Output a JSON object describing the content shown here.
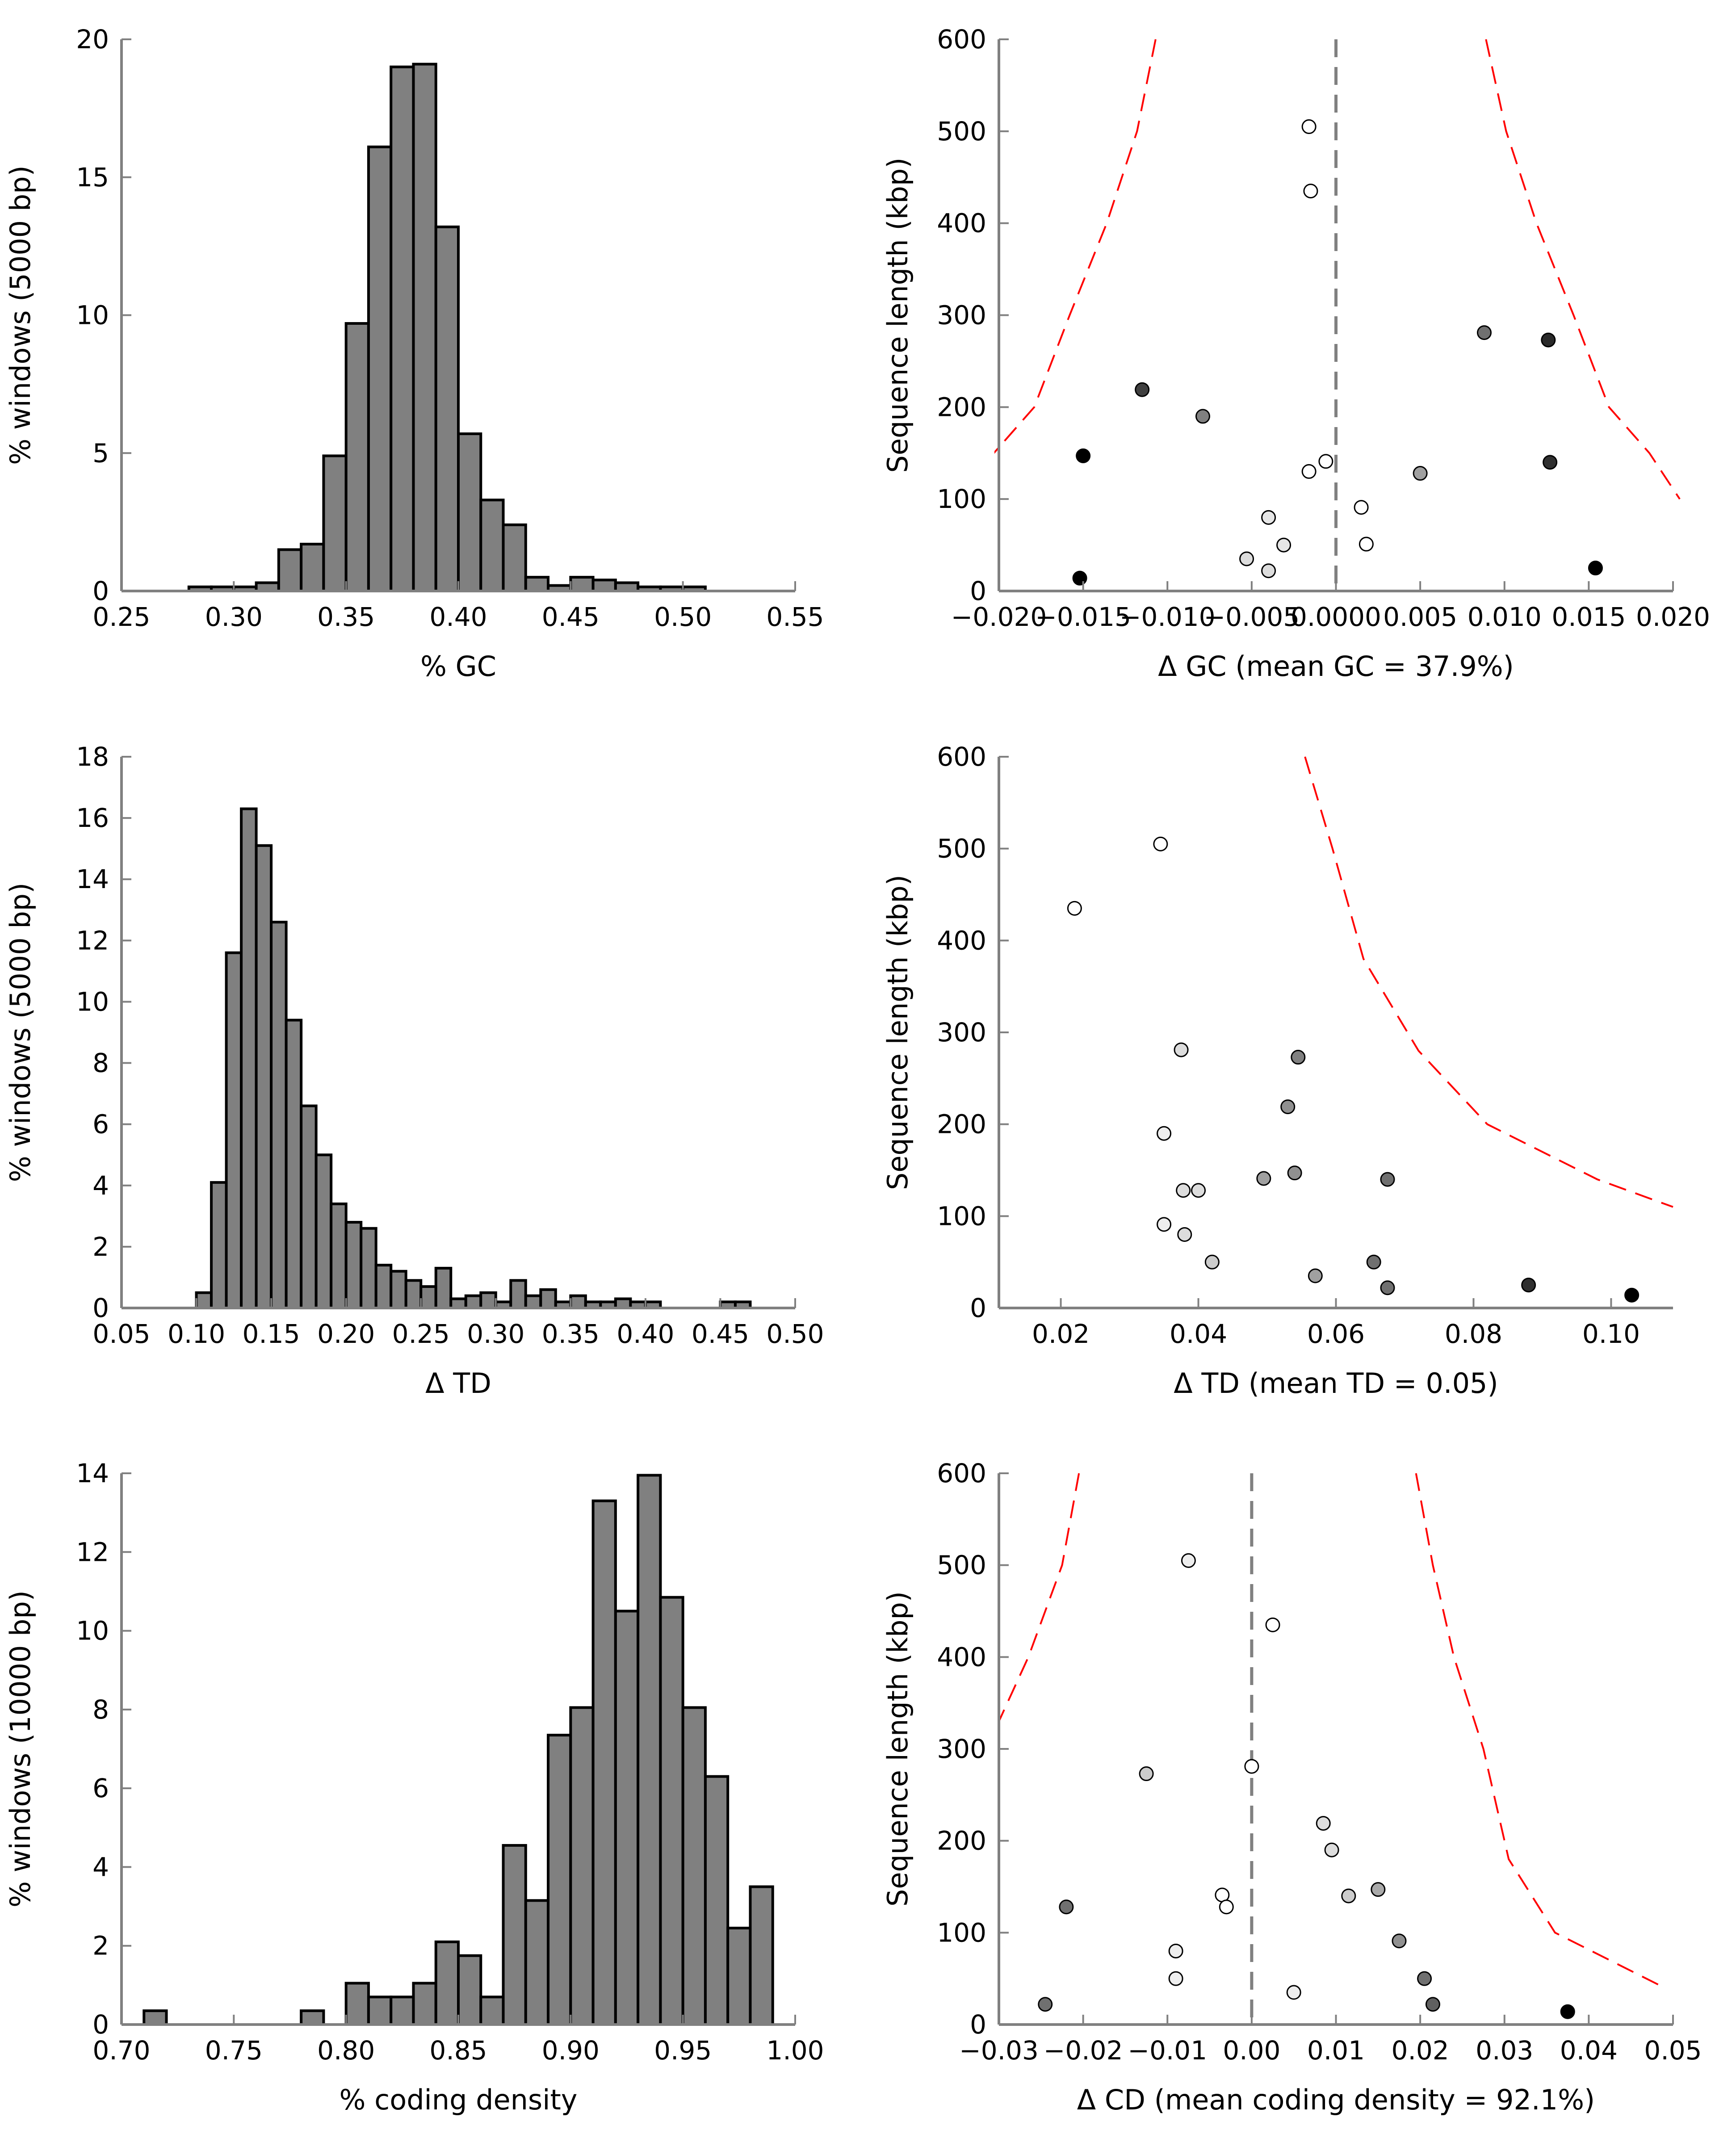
{
  "chart_data": [
    {
      "type": "bar",
      "subtype": "histogram",
      "xlabel": "% GC",
      "ylabel": "% windows (5000 bp)",
      "xlim": [
        0.25,
        0.55
      ],
      "ylim": [
        0,
        20
      ],
      "xticks": [
        "0.25",
        "0.30",
        "0.35",
        "0.40",
        "0.45",
        "0.50",
        "0.55"
      ],
      "yticks": [
        "0",
        "5",
        "10",
        "15",
        "20"
      ],
      "bar_color": "#808080",
      "bins": [
        {
          "x0": 0.28,
          "x1": 0.29,
          "value": 0.15
        },
        {
          "x0": 0.29,
          "x1": 0.3,
          "value": 0.15
        },
        {
          "x0": 0.3,
          "x1": 0.31,
          "value": 0.15
        },
        {
          "x0": 0.31,
          "x1": 0.32,
          "value": 0.3
        },
        {
          "x0": 0.32,
          "x1": 0.33,
          "value": 1.5
        },
        {
          "x0": 0.33,
          "x1": 0.34,
          "value": 1.7
        },
        {
          "x0": 0.34,
          "x1": 0.35,
          "value": 4.9
        },
        {
          "x0": 0.35,
          "x1": 0.36,
          "value": 9.7
        },
        {
          "x0": 0.36,
          "x1": 0.37,
          "value": 16.1
        },
        {
          "x0": 0.37,
          "x1": 0.38,
          "value": 19.0
        },
        {
          "x0": 0.38,
          "x1": 0.39,
          "value": 19.1
        },
        {
          "x0": 0.39,
          "x1": 0.4,
          "value": 13.2
        },
        {
          "x0": 0.4,
          "x1": 0.41,
          "value": 5.7
        },
        {
          "x0": 0.41,
          "x1": 0.42,
          "value": 3.3
        },
        {
          "x0": 0.42,
          "x1": 0.43,
          "value": 2.4
        },
        {
          "x0": 0.43,
          "x1": 0.44,
          "value": 0.5
        },
        {
          "x0": 0.44,
          "x1": 0.45,
          "value": 0.2
        },
        {
          "x0": 0.45,
          "x1": 0.46,
          "value": 0.5
        },
        {
          "x0": 0.46,
          "x1": 0.47,
          "value": 0.4
        },
        {
          "x0": 0.47,
          "x1": 0.48,
          "value": 0.3
        },
        {
          "x0": 0.48,
          "x1": 0.49,
          "value": 0.15
        },
        {
          "x0": 0.49,
          "x1": 0.5,
          "value": 0.15
        },
        {
          "x0": 0.5,
          "x1": 0.51,
          "value": 0.15
        }
      ]
    },
    {
      "type": "scatter",
      "xlabel": "Δ GC (mean GC = 37.9%)",
      "ylabel": "Sequence length (kbp)",
      "xlim": [
        -0.02,
        0.02
      ],
      "ylim": [
        0,
        600
      ],
      "xticks": [
        "−0.020",
        "−0.015",
        "−0.010",
        "−0.005",
        "0.0000",
        "0.005",
        "0.010",
        "0.015",
        "0.020"
      ],
      "xtick_values": [
        -0.02,
        -0.015,
        -0.01,
        -0.005,
        0,
        0.005,
        0.01,
        0.015,
        0.02
      ],
      "yticks": [
        "0",
        "100",
        "200",
        "300",
        "400",
        "500",
        "600"
      ],
      "reference_line_x": 0,
      "reference_line_color": "#808080",
      "threshold_color": "#ff0000",
      "threshold_curves": [
        {
          "x": [
            -0.0107,
            -0.0118,
            -0.0136,
            -0.0158,
            -0.0179,
            -0.0203,
            -0.0221
          ],
          "y": [
            600,
            500,
            400,
            300,
            200,
            150,
            120
          ]
        },
        {
          "x": [
            0.0089,
            0.0101,
            0.0119,
            0.0141,
            0.0162,
            0.0186,
            0.0204
          ],
          "y": [
            600,
            500,
            400,
            300,
            200,
            150,
            100
          ]
        }
      ],
      "points": [
        {
          "x": -0.0016,
          "y": 505,
          "fill": "#ffffff"
        },
        {
          "x": -0.0015,
          "y": 435,
          "fill": "#ffffff"
        },
        {
          "x": 0.0088,
          "y": 281,
          "fill": "#707070"
        },
        {
          "x": 0.0126,
          "y": 273,
          "fill": "#2a2a2a"
        },
        {
          "x": -0.0115,
          "y": 219,
          "fill": "#404040"
        },
        {
          "x": -0.0079,
          "y": 190,
          "fill": "#808080"
        },
        {
          "x": -0.015,
          "y": 147,
          "fill": "#000000"
        },
        {
          "x": -0.0006,
          "y": 141,
          "fill": "#ffffff"
        },
        {
          "x": 0.0127,
          "y": 140,
          "fill": "#303030"
        },
        {
          "x": -0.0016,
          "y": 130,
          "fill": "#ffffff"
        },
        {
          "x": 0.005,
          "y": 128,
          "fill": "#a0a0a0"
        },
        {
          "x": 0.0015,
          "y": 91,
          "fill": "#ffffff"
        },
        {
          "x": -0.004,
          "y": 80,
          "fill": "#e6e6e6"
        },
        {
          "x": 0.0018,
          "y": 51,
          "fill": "#ffffff"
        },
        {
          "x": -0.0031,
          "y": 50,
          "fill": "#e6e6e6"
        },
        {
          "x": -0.0053,
          "y": 35,
          "fill": "#dddddd"
        },
        {
          "x": 0.0154,
          "y": 25,
          "fill": "#000000"
        },
        {
          "x": -0.004,
          "y": 22,
          "fill": "#dddddd"
        },
        {
          "x": -0.0152,
          "y": 14,
          "fill": "#000000"
        }
      ]
    },
    {
      "type": "bar",
      "subtype": "histogram",
      "xlabel": "Δ TD",
      "ylabel": "% windows (5000 bp)",
      "xlim": [
        0.05,
        0.5
      ],
      "ylim": [
        0,
        18
      ],
      "xticks": [
        "0.05",
        "0.10",
        "0.15",
        "0.20",
        "0.25",
        "0.30",
        "0.35",
        "0.40",
        "0.45",
        "0.50"
      ],
      "yticks": [
        "0",
        "2",
        "4",
        "6",
        "8",
        "10",
        "12",
        "14",
        "16",
        "18"
      ],
      "bar_color": "#808080",
      "bins": [
        {
          "x0": 0.1,
          "x1": 0.11,
          "value": 0.5
        },
        {
          "x0": 0.11,
          "x1": 0.12,
          "value": 4.1
        },
        {
          "x0": 0.12,
          "x1": 0.13,
          "value": 11.6
        },
        {
          "x0": 0.13,
          "x1": 0.14,
          "value": 16.3
        },
        {
          "x0": 0.14,
          "x1": 0.15,
          "value": 15.1
        },
        {
          "x0": 0.15,
          "x1": 0.16,
          "value": 12.6
        },
        {
          "x0": 0.16,
          "x1": 0.17,
          "value": 9.4
        },
        {
          "x0": 0.17,
          "x1": 0.18,
          "value": 6.6
        },
        {
          "x0": 0.18,
          "x1": 0.19,
          "value": 5.0
        },
        {
          "x0": 0.19,
          "x1": 0.2,
          "value": 3.4
        },
        {
          "x0": 0.2,
          "x1": 0.21,
          "value": 2.8
        },
        {
          "x0": 0.21,
          "x1": 0.22,
          "value": 2.6
        },
        {
          "x0": 0.22,
          "x1": 0.23,
          "value": 1.4
        },
        {
          "x0": 0.23,
          "x1": 0.24,
          "value": 1.2
        },
        {
          "x0": 0.24,
          "x1": 0.25,
          "value": 0.9
        },
        {
          "x0": 0.25,
          "x1": 0.26,
          "value": 0.7
        },
        {
          "x0": 0.26,
          "x1": 0.27,
          "value": 1.3
        },
        {
          "x0": 0.27,
          "x1": 0.28,
          "value": 0.3
        },
        {
          "x0": 0.28,
          "x1": 0.29,
          "value": 0.4
        },
        {
          "x0": 0.29,
          "x1": 0.3,
          "value": 0.5
        },
        {
          "x0": 0.3,
          "x1": 0.31,
          "value": 0.2
        },
        {
          "x0": 0.31,
          "x1": 0.32,
          "value": 0.9
        },
        {
          "x0": 0.32,
          "x1": 0.33,
          "value": 0.4
        },
        {
          "x0": 0.33,
          "x1": 0.34,
          "value": 0.6
        },
        {
          "x0": 0.34,
          "x1": 0.35,
          "value": 0.2
        },
        {
          "x0": 0.35,
          "x1": 0.36,
          "value": 0.4
        },
        {
          "x0": 0.36,
          "x1": 0.37,
          "value": 0.2
        },
        {
          "x0": 0.37,
          "x1": 0.38,
          "value": 0.2
        },
        {
          "x0": 0.38,
          "x1": 0.39,
          "value": 0.3
        },
        {
          "x0": 0.39,
          "x1": 0.4,
          "value": 0.2
        },
        {
          "x0": 0.4,
          "x1": 0.41,
          "value": 0.2
        },
        {
          "x0": 0.45,
          "x1": 0.46,
          "value": 0.2
        },
        {
          "x0": 0.46,
          "x1": 0.47,
          "value": 0.2
        }
      ]
    },
    {
      "type": "scatter",
      "xlabel": "Δ TD (mean TD = 0.05)",
      "ylabel": "Sequence length (kbp)",
      "xlim": [
        0.011,
        0.109
      ],
      "ylim": [
        0,
        600
      ],
      "xticks": [
        "0.02",
        "0.04",
        "0.06",
        "0.08",
        "0.10"
      ],
      "xtick_values": [
        0.02,
        0.04,
        0.06,
        0.08,
        0.1
      ],
      "yticks": [
        "0",
        "100",
        "200",
        "300",
        "400",
        "500",
        "600"
      ],
      "threshold_color": "#ff0000",
      "threshold_curves": [
        {
          "x": [
            0.0555,
            0.0595,
            0.064,
            0.072,
            0.082,
            0.098,
            0.109
          ],
          "y": [
            600,
            500,
            380,
            280,
            200,
            140,
            110
          ]
        }
      ],
      "points": [
        {
          "x": 0.0345,
          "y": 505,
          "fill": "#ffffff"
        },
        {
          "x": 0.022,
          "y": 435,
          "fill": "#ffffff"
        },
        {
          "x": 0.0375,
          "y": 281,
          "fill": "#dddddd"
        },
        {
          "x": 0.0545,
          "y": 273,
          "fill": "#808080"
        },
        {
          "x": 0.053,
          "y": 219,
          "fill": "#909090"
        },
        {
          "x": 0.035,
          "y": 190,
          "fill": "#eeeeee"
        },
        {
          "x": 0.054,
          "y": 147,
          "fill": "#909090"
        },
        {
          "x": 0.0495,
          "y": 141,
          "fill": "#a0a0a0"
        },
        {
          "x": 0.0675,
          "y": 140,
          "fill": "#707070"
        },
        {
          "x": 0.0378,
          "y": 128,
          "fill": "#dddddd"
        },
        {
          "x": 0.04,
          "y": 128,
          "fill": "#dddddd"
        },
        {
          "x": 0.035,
          "y": 91,
          "fill": "#eeeeee"
        },
        {
          "x": 0.038,
          "y": 80,
          "fill": "#dddddd"
        },
        {
          "x": 0.042,
          "y": 50,
          "fill": "#cccccc"
        },
        {
          "x": 0.0655,
          "y": 50,
          "fill": "#707070"
        },
        {
          "x": 0.057,
          "y": 35,
          "fill": "#a0a0a0"
        },
        {
          "x": 0.088,
          "y": 25,
          "fill": "#303030"
        },
        {
          "x": 0.0675,
          "y": 22,
          "fill": "#707070"
        },
        {
          "x": 0.103,
          "y": 14,
          "fill": "#000000"
        }
      ]
    },
    {
      "type": "bar",
      "subtype": "histogram",
      "xlabel": "% coding density",
      "ylabel": "% windows (10000 bp)",
      "xlim": [
        0.7,
        1.0
      ],
      "ylim": [
        0,
        14
      ],
      "xticks": [
        "0.70",
        "0.75",
        "0.80",
        "0.85",
        "0.90",
        "0.95",
        "1.00"
      ],
      "yticks": [
        "0",
        "2",
        "4",
        "6",
        "8",
        "10",
        "12",
        "14"
      ],
      "bar_color": "#808080",
      "bins": [
        {
          "x0": 0.71,
          "x1": 0.72,
          "value": 0.35
        },
        {
          "x0": 0.78,
          "x1": 0.79,
          "value": 0.35
        },
        {
          "x0": 0.8,
          "x1": 0.81,
          "value": 1.05
        },
        {
          "x0": 0.81,
          "x1": 0.82,
          "value": 0.7
        },
        {
          "x0": 0.82,
          "x1": 0.83,
          "value": 0.7
        },
        {
          "x0": 0.83,
          "x1": 0.84,
          "value": 1.05
        },
        {
          "x0": 0.84,
          "x1": 0.85,
          "value": 2.1
        },
        {
          "x0": 0.85,
          "x1": 0.86,
          "value": 1.75
        },
        {
          "x0": 0.86,
          "x1": 0.87,
          "value": 0.7
        },
        {
          "x0": 0.87,
          "x1": 0.88,
          "value": 4.55
        },
        {
          "x0": 0.88,
          "x1": 0.89,
          "value": 3.15
        },
        {
          "x0": 0.89,
          "x1": 0.9,
          "value": 7.35
        },
        {
          "x0": 0.9,
          "x1": 0.91,
          "value": 8.05
        },
        {
          "x0": 0.91,
          "x1": 0.92,
          "value": 13.3
        },
        {
          "x0": 0.92,
          "x1": 0.93,
          "value": 10.5
        },
        {
          "x0": 0.93,
          "x1": 0.94,
          "value": 13.95
        },
        {
          "x0": 0.94,
          "x1": 0.95,
          "value": 10.85
        },
        {
          "x0": 0.95,
          "x1": 0.96,
          "value": 8.05
        },
        {
          "x0": 0.96,
          "x1": 0.97,
          "value": 6.3
        },
        {
          "x0": 0.97,
          "x1": 0.98,
          "value": 2.45
        },
        {
          "x0": 0.98,
          "x1": 0.99,
          "value": 3.5
        }
      ]
    },
    {
      "type": "scatter",
      "xlabel": "Δ CD (mean coding density = 92.1%)",
      "ylabel": "Sequence length (kbp)",
      "xlim": [
        -0.03,
        0.05
      ],
      "ylim": [
        0,
        600
      ],
      "xticks": [
        "−0.03",
        "−0.02",
        "−0.01",
        "0.00",
        "0.01",
        "0.02",
        "0.03",
        "0.04",
        "0.05"
      ],
      "xtick_values": [
        -0.03,
        -0.02,
        -0.01,
        0,
        0.01,
        0.02,
        0.03,
        0.04,
        0.05
      ],
      "yticks": [
        "0",
        "100",
        "200",
        "300",
        "400",
        "500",
        "600"
      ],
      "reference_line_x": 0,
      "reference_line_color": "#808080",
      "threshold_color": "#ff0000",
      "threshold_curves": [
        {
          "x": [
            -0.0205,
            -0.0225,
            -0.0265,
            -0.03
          ],
          "y": [
            600,
            500,
            400,
            330
          ]
        },
        {
          "x": [
            0.0195,
            0.0215,
            0.024,
            0.0275,
            0.0305,
            0.036,
            0.049
          ],
          "y": [
            600,
            500,
            400,
            300,
            180,
            100,
            40
          ]
        }
      ],
      "points": [
        {
          "x": -0.0075,
          "y": 505,
          "fill": "#eeeeee"
        },
        {
          "x": 0.0025,
          "y": 435,
          "fill": "#ffffff"
        },
        {
          "x": 0.0,
          "y": 281,
          "fill": "#ffffff"
        },
        {
          "x": -0.0125,
          "y": 273,
          "fill": "#cccccc"
        },
        {
          "x": 0.0085,
          "y": 219,
          "fill": "#dddddd"
        },
        {
          "x": 0.0095,
          "y": 190,
          "fill": "#dddddd"
        },
        {
          "x": 0.015,
          "y": 147,
          "fill": "#aaaaaa"
        },
        {
          "x": -0.0035,
          "y": 141,
          "fill": "#ffffff"
        },
        {
          "x": 0.0115,
          "y": 140,
          "fill": "#cccccc"
        },
        {
          "x": -0.003,
          "y": 128,
          "fill": "#ffffff"
        },
        {
          "x": -0.022,
          "y": 128,
          "fill": "#707070"
        },
        {
          "x": 0.0175,
          "y": 91,
          "fill": "#909090"
        },
        {
          "x": -0.009,
          "y": 80,
          "fill": "#eeeeee"
        },
        {
          "x": -0.009,
          "y": 50,
          "fill": "#eeeeee"
        },
        {
          "x": 0.0205,
          "y": 50,
          "fill": "#707070"
        },
        {
          "x": 0.005,
          "y": 35,
          "fill": "#eeeeee"
        },
        {
          "x": -0.0245,
          "y": 22,
          "fill": "#707070"
        },
        {
          "x": 0.0215,
          "y": 22,
          "fill": "#606060"
        },
        {
          "x": 0.0375,
          "y": 14,
          "fill": "#000000"
        }
      ]
    }
  ]
}
